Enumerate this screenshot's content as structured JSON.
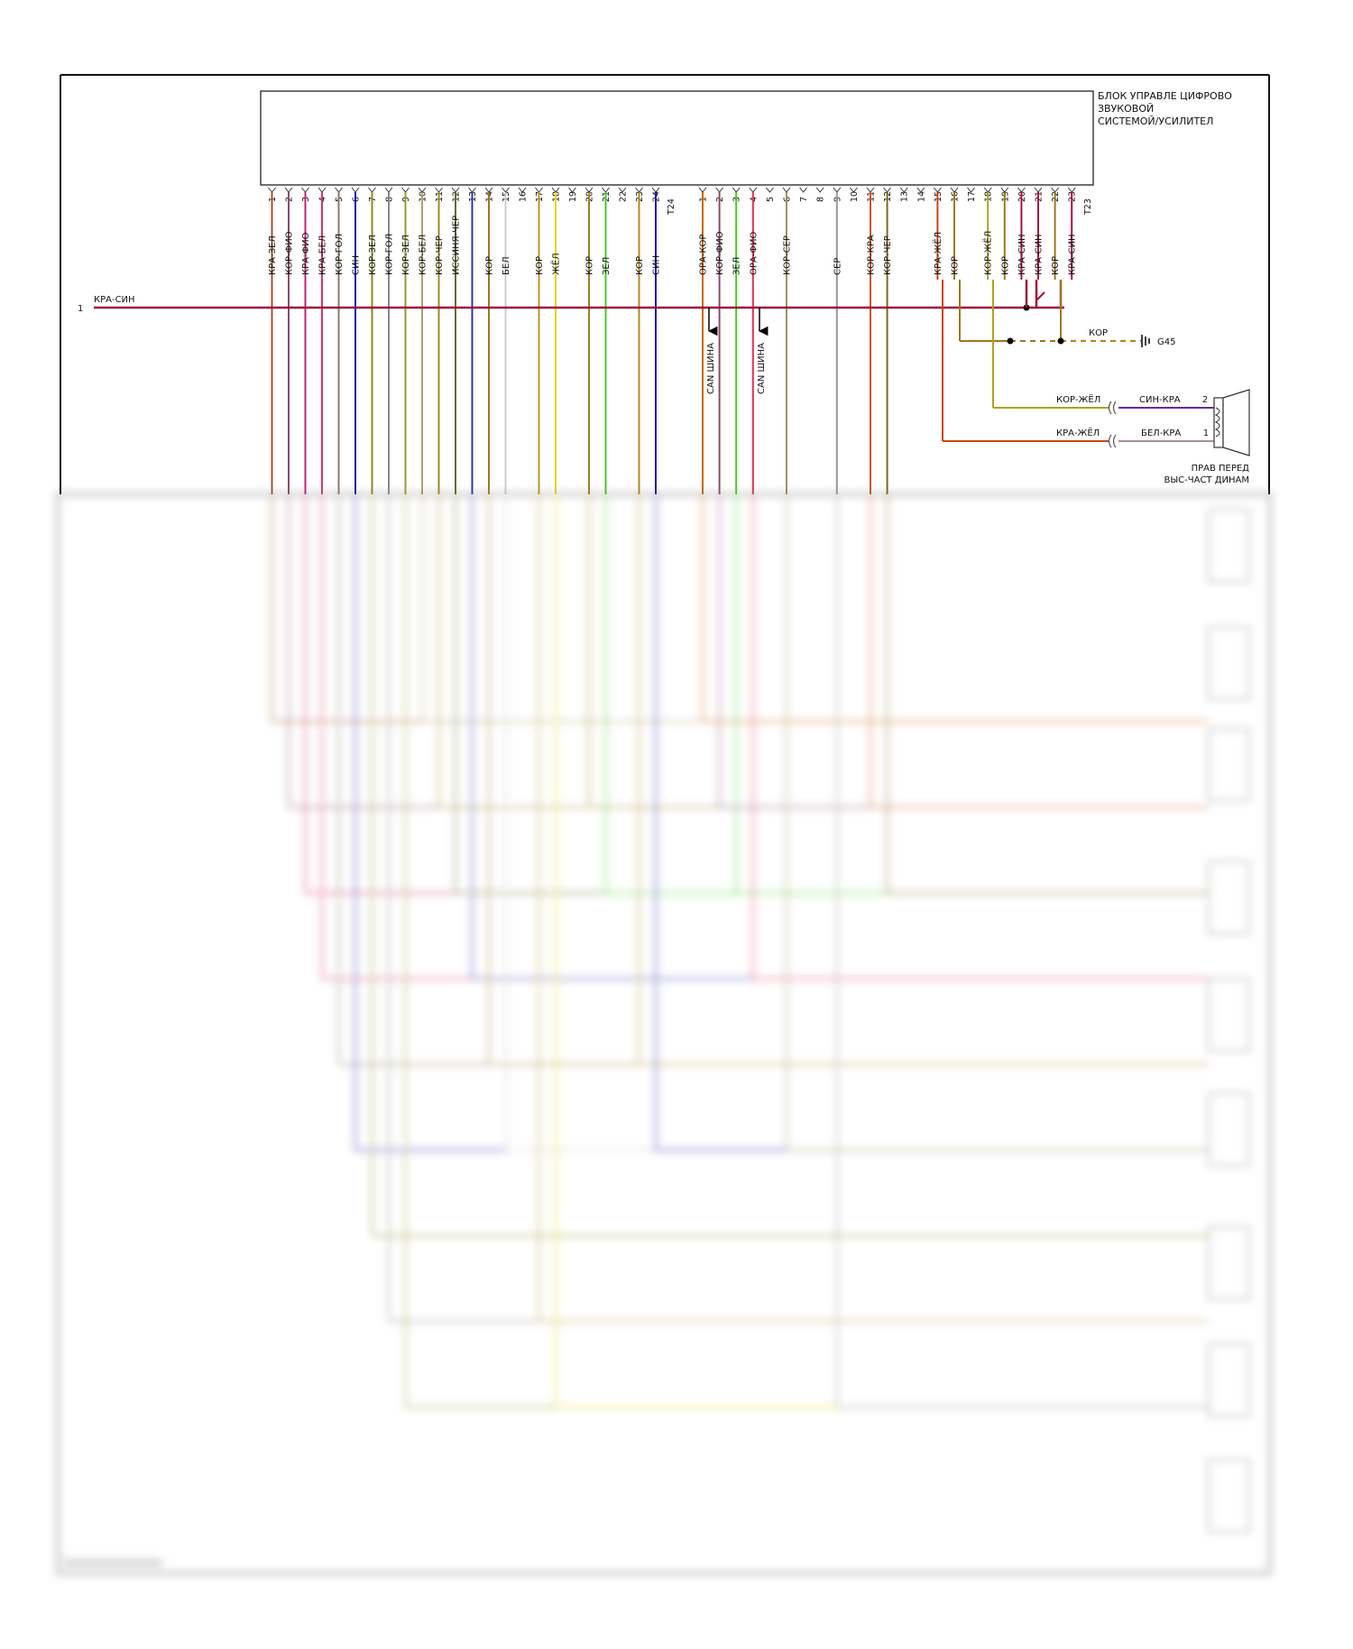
{
  "module": {
    "title_lines": [
      "БЛОК УПРАВЛЕ ЦИФРОВО",
      "ЗВУКОВОЙ",
      "СИСТЕМОЙ/УСИЛИТЕЛ"
    ]
  },
  "connector_t24": {
    "name": "T24",
    "pins": [
      {
        "pin": "1",
        "wire": "КРА-ЗЕЛ",
        "color": "#a0522d"
      },
      {
        "pin": "2",
        "wire": "КОР-ФИО",
        "color": "#8b4a6b"
      },
      {
        "pin": "3",
        "wire": "КРА-ФИО",
        "color": "#c0246e"
      },
      {
        "pin": "4",
        "wire": "КРА-БЕЛ",
        "color": "#d6336c"
      },
      {
        "pin": "5",
        "wire": "КОР-ГОЛ",
        "color": "#8a7a6a"
      },
      {
        "pin": "6",
        "wire": "СИН",
        "color": "#1a1aaa"
      },
      {
        "pin": "7",
        "wire": "КОР-ЗЕЛ",
        "color": "#8a8a20"
      },
      {
        "pin": "8",
        "wire": "КОР-ГОЛ",
        "color": "#8a8a8a"
      },
      {
        "pin": "9",
        "wire": "КОР-ЗЕЛ",
        "color": "#9a9a30"
      },
      {
        "pin": "10",
        "wire": "КОР-БЕЛ",
        "color": "#b0a070"
      },
      {
        "pin": "11",
        "wire": "КОР-ЧЕР",
        "color": "#a08a20"
      },
      {
        "pin": "12",
        "wire": "ИССИНЯ-ЧЕР",
        "color": "#6a6a2a"
      },
      {
        "pin": "13",
        "wire": "",
        "color": "#3333aa"
      },
      {
        "pin": "14",
        "wire": "КОР",
        "color": "#9a7a20"
      },
      {
        "pin": "15",
        "wire": "БЕЛ",
        "color": "#cccccc"
      },
      {
        "pin": "16",
        "wire": "",
        "color": ""
      },
      {
        "pin": "17",
        "wire": "КОР",
        "color": "#b09a30"
      },
      {
        "pin": "18",
        "wire": "ЖЁЛ",
        "color": "#e6d800"
      },
      {
        "pin": "19",
        "wire": "",
        "color": ""
      },
      {
        "pin": "20",
        "wire": "КОР",
        "color": "#a08020"
      },
      {
        "pin": "21",
        "wire": "ЗЕЛ",
        "color": "#44cc22"
      },
      {
        "pin": "22",
        "wire": "",
        "color": ""
      },
      {
        "pin": "23",
        "wire": "КОР",
        "color": "#b08a20"
      },
      {
        "pin": "24",
        "wire": "СИН",
        "color": "#1a1aaa"
      }
    ]
  },
  "connector_t23": {
    "name": "T23",
    "pins": [
      {
        "pin": "1",
        "wire": "ОРА-КОР",
        "color": "#cc6600"
      },
      {
        "pin": "2",
        "wire": "КОР-ФИО",
        "color": "#8b4a6b"
      },
      {
        "pin": "3",
        "wire": "ЗЕЛ",
        "color": "#44cc22"
      },
      {
        "pin": "4",
        "wire": "ОРА-ФИО",
        "color": "#dd3355"
      },
      {
        "pin": "5",
        "wire": "",
        "color": ""
      },
      {
        "pin": "6",
        "wire": "КОР-СЕР",
        "color": "#a09060"
      },
      {
        "pin": "7",
        "wire": "",
        "color": ""
      },
      {
        "pin": "8",
        "wire": "",
        "color": ""
      },
      {
        "pin": "9",
        "wire": "СЕР",
        "color": "#999999"
      },
      {
        "pin": "10",
        "wire": "",
        "color": ""
      },
      {
        "pin": "11",
        "wire": "КОР-КРА",
        "color": "#cc5522"
      },
      {
        "pin": "12",
        "wire": "КОР-ЧЕР",
        "color": "#7a6a20"
      },
      {
        "pin": "13",
        "wire": "",
        "color": ""
      },
      {
        "pin": "14",
        "wire": "",
        "color": ""
      },
      {
        "pin": "15",
        "wire": "КРА-ЖЁЛ",
        "color": "#cc4411"
      },
      {
        "pin": "16",
        "wire": "КОР",
        "color": "#9a7a20"
      },
      {
        "pin": "17",
        "wire": "",
        "color": ""
      },
      {
        "pin": "18",
        "wire": "КОР-ЖЁЛ",
        "color": "#b0a020"
      },
      {
        "pin": "19",
        "wire": "КОР",
        "color": "#9a7a20"
      },
      {
        "pin": "20",
        "wire": "КРА-СИН",
        "color": "#aa1144"
      },
      {
        "pin": "21",
        "wire": "КРА-СИН",
        "color": "#aa1144"
      },
      {
        "pin": "22",
        "wire": "КОР",
        "color": "#9a7a20"
      },
      {
        "pin": "23",
        "wire": "КРА-СИН",
        "color": "#aa1144"
      }
    ]
  },
  "power_feed": {
    "number": "1",
    "wire": "КРА-СИН",
    "color": "#a0143c"
  },
  "can_bus": {
    "label": "CAN ШИНА"
  },
  "ground": {
    "wire": "КОР",
    "name": "G45"
  },
  "speaker_front_right_tweeter": {
    "pin2": "2",
    "pin1": "1",
    "wire_upper_in": "КОР-ЖЁЛ",
    "wire_upper_out": "СИН-КРА",
    "wire_lower_in": "КРА-ЖЁЛ",
    "wire_lower_out": "БЕЛ-КРА",
    "label_lines": [
      "ПРАВ ПЕРЕД",
      "ВЫС-ЧАСТ ДИНАМ"
    ]
  }
}
